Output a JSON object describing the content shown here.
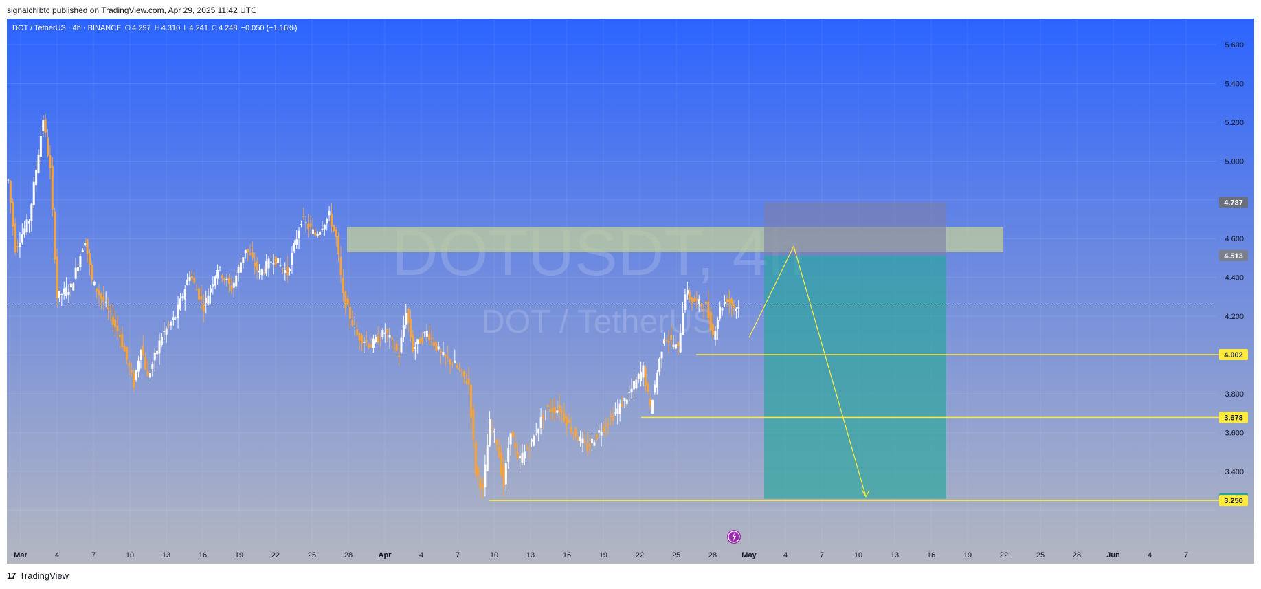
{
  "header": {
    "published": "signalchibtc published on TradingView.com, Apr 29, 2025 11:42 UTC"
  },
  "legend": {
    "symbol": "DOT / TetherUS · 4h · BINANCE",
    "o_key": "O",
    "o": "4.297",
    "h_key": "H",
    "h": "4.310",
    "l_key": "L",
    "l": "4.241",
    "c_key": "C",
    "c": "4.248",
    "change": "−0.050 (−1.16%)"
  },
  "watermark": {
    "line1": "DOTUSDT, 4h",
    "line2": "DOT / TetherUS"
  },
  "footer": {
    "brand": "TradingView",
    "logo": "17"
  },
  "colors": {
    "bg_top": "#2b64ff",
    "bg_bottom": "#b3b6c0",
    "candle_up": "#ffffff",
    "candle_down": "#f7a338",
    "level_line": "#ffeb3b",
    "zone": "#c2cf9a",
    "target_box": "#26a69a",
    "stop_box": "#8080a0"
  },
  "chart_data": {
    "type": "candlestick",
    "y_axis": {
      "min": 3.1,
      "max": 5.7,
      "ticks": [
        "5.600",
        "5.400",
        "5.200",
        "5.000",
        "4.600",
        "4.400",
        "4.200",
        "3.800",
        "3.600",
        "3.400"
      ]
    },
    "x_labels": [
      "Mar",
      "4",
      "7",
      "10",
      "13",
      "16",
      "19",
      "22",
      "25",
      "28",
      "Apr",
      "4",
      "7",
      "10",
      "13",
      "16",
      "19",
      "22",
      "25",
      "28",
      "May",
      "4",
      "7",
      "10",
      "13",
      "16",
      "19",
      "22",
      "25",
      "28",
      "Jun",
      "4",
      "7"
    ],
    "price_anchors": [
      [
        0,
        4.9
      ],
      [
        1,
        4.55
      ],
      [
        3,
        4.7
      ],
      [
        5,
        5.22
      ],
      [
        6,
        4.95
      ],
      [
        7,
        4.3
      ],
      [
        9,
        4.35
      ],
      [
        11,
        4.6
      ],
      [
        12,
        4.38
      ],
      [
        14,
        4.25
      ],
      [
        16,
        4.1
      ],
      [
        18,
        3.85
      ],
      [
        19,
        4.05
      ],
      [
        20,
        3.88
      ],
      [
        22,
        4.1
      ],
      [
        24,
        4.2
      ],
      [
        26,
        4.42
      ],
      [
        28,
        4.25
      ],
      [
        30,
        4.45
      ],
      [
        32,
        4.34
      ],
      [
        34,
        4.55
      ],
      [
        36,
        4.42
      ],
      [
        38,
        4.5
      ],
      [
        40,
        4.42
      ],
      [
        42,
        4.7
      ],
      [
        44,
        4.62
      ],
      [
        46,
        4.72
      ],
      [
        47,
        4.6
      ],
      [
        48,
        4.3
      ],
      [
        50,
        4.1
      ],
      [
        52,
        4.05
      ],
      [
        54,
        4.12
      ],
      [
        56,
        4.0
      ],
      [
        57,
        4.23
      ],
      [
        58,
        4.03
      ],
      [
        60,
        4.12
      ],
      [
        62,
        4.0
      ],
      [
        64,
        3.95
      ],
      [
        66,
        3.85
      ],
      [
        67,
        3.4
      ],
      [
        68,
        3.3
      ],
      [
        69,
        3.65
      ],
      [
        70,
        3.55
      ],
      [
        71,
        3.33
      ],
      [
        72,
        3.62
      ],
      [
        73,
        3.45
      ],
      [
        75,
        3.55
      ],
      [
        77,
        3.72
      ],
      [
        79,
        3.72
      ],
      [
        81,
        3.6
      ],
      [
        83,
        3.52
      ],
      [
        85,
        3.62
      ],
      [
        87,
        3.7
      ],
      [
        89,
        3.8
      ],
      [
        91,
        3.93
      ],
      [
        92,
        3.72
      ],
      [
        94,
        4.1
      ],
      [
        96,
        4.03
      ],
      [
        97,
        4.33
      ],
      [
        98,
        4.28
      ],
      [
        100,
        4.25
      ],
      [
        101,
        4.1
      ],
      [
        102,
        4.24
      ],
      [
        103,
        4.29
      ],
      [
        104,
        4.248
      ]
    ],
    "candle_count": 105,
    "levels": [
      {
        "label": "4.002",
        "value": 4.002,
        "color": "#ffeb3b",
        "text_color": "#131722"
      },
      {
        "label": "3.678",
        "value": 3.678,
        "color": "#ffeb3b",
        "text_color": "#131722"
      },
      {
        "label": "3.250",
        "value": 3.25,
        "color": "#ffeb3b",
        "text_color": "#131722"
      }
    ],
    "box_labels": [
      {
        "label": "4.787",
        "value": 4.787,
        "color": "#6b6f7b",
        "text_color": "#ffffff"
      },
      {
        "label": "4.513",
        "value": 4.513,
        "color": "#7a7f8c",
        "text_color": "#ffffff"
      },
      {
        "label": "3.259",
        "value": 3.259,
        "color": "#26a69a",
        "text_color": "#ffffff"
      }
    ],
    "resistance_zone": {
      "from": 4.53,
      "to": 4.66
    },
    "current_price": 4.248,
    "projection": [
      [
        4.09,
        0
      ],
      [
        4.56,
        1
      ],
      [
        3.27,
        2
      ]
    ]
  }
}
